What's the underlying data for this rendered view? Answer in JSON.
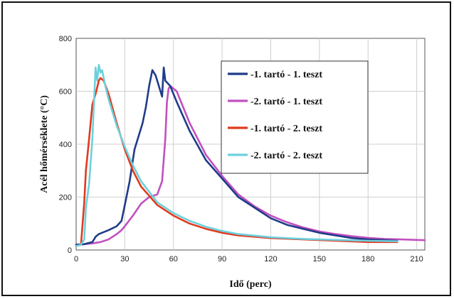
{
  "chart_data": {
    "type": "line",
    "xlabel": "Idő (perc)",
    "ylabel": "Acél hőmérséklete (°C)",
    "xlim": [
      0,
      215
    ],
    "ylim": [
      0,
      800
    ],
    "xticks": [
      0,
      30,
      60,
      90,
      120,
      150,
      180,
      210
    ],
    "yticks": [
      0,
      200,
      400,
      600,
      800
    ],
    "grid": true,
    "legend_position": "top-right",
    "series": [
      {
        "name": "-1. tartó - 1. teszt",
        "color": "#1f3c88",
        "points": [
          [
            0,
            20
          ],
          [
            5,
            22
          ],
          [
            10,
            30
          ],
          [
            12,
            50
          ],
          [
            14,
            60
          ],
          [
            20,
            75
          ],
          [
            25,
            90
          ],
          [
            28,
            110
          ],
          [
            30,
            170
          ],
          [
            33,
            260
          ],
          [
            36,
            380
          ],
          [
            38,
            420
          ],
          [
            41,
            480
          ],
          [
            43,
            540
          ],
          [
            45,
            620
          ],
          [
            47,
            680
          ],
          [
            49,
            660
          ],
          [
            52,
            600
          ],
          [
            53,
            580
          ],
          [
            54,
            690
          ],
          [
            55,
            640
          ],
          [
            58,
            620
          ],
          [
            62,
            560
          ],
          [
            70,
            450
          ],
          [
            80,
            340
          ],
          [
            90,
            270
          ],
          [
            100,
            200
          ],
          [
            110,
            160
          ],
          [
            120,
            120
          ],
          [
            130,
            95
          ],
          [
            140,
            80
          ],
          [
            150,
            65
          ],
          [
            160,
            55
          ],
          [
            170,
            45
          ],
          [
            180,
            40
          ],
          [
            190,
            37
          ],
          [
            198,
            35
          ]
        ]
      },
      {
        "name": "-2. tartó - 1. teszt",
        "color": "#c050c0",
        "points": [
          [
            0,
            20
          ],
          [
            5,
            22
          ],
          [
            10,
            25
          ],
          [
            15,
            30
          ],
          [
            20,
            40
          ],
          [
            25,
            60
          ],
          [
            28,
            75
          ],
          [
            30,
            90
          ],
          [
            35,
            130
          ],
          [
            40,
            175
          ],
          [
            45,
            200
          ],
          [
            50,
            210
          ],
          [
            53,
            260
          ],
          [
            55,
            420
          ],
          [
            56,
            560
          ],
          [
            57,
            610
          ],
          [
            58,
            620
          ],
          [
            62,
            600
          ],
          [
            70,
            480
          ],
          [
            80,
            360
          ],
          [
            90,
            280
          ],
          [
            100,
            210
          ],
          [
            110,
            165
          ],
          [
            120,
            130
          ],
          [
            130,
            105
          ],
          [
            140,
            85
          ],
          [
            150,
            70
          ],
          [
            160,
            60
          ],
          [
            170,
            52
          ],
          [
            180,
            46
          ],
          [
            190,
            42
          ],
          [
            200,
            40
          ],
          [
            210,
            38
          ],
          [
            215,
            37
          ]
        ]
      },
      {
        "name": "-1. tartó - 2. teszt",
        "color": "#e03a1e",
        "points": [
          [
            0,
            15
          ],
          [
            3,
            20
          ],
          [
            5,
            180
          ],
          [
            6,
            300
          ],
          [
            7,
            360
          ],
          [
            8,
            420
          ],
          [
            10,
            550
          ],
          [
            12,
            590
          ],
          [
            14,
            640
          ],
          [
            15,
            650
          ],
          [
            17,
            640
          ],
          [
            20,
            590
          ],
          [
            25,
            480
          ],
          [
            30,
            380
          ],
          [
            35,
            300
          ],
          [
            40,
            240
          ],
          [
            50,
            170
          ],
          [
            60,
            130
          ],
          [
            70,
            100
          ],
          [
            80,
            80
          ],
          [
            90,
            65
          ],
          [
            100,
            55
          ],
          [
            120,
            45
          ],
          [
            140,
            40
          ],
          [
            160,
            35
          ],
          [
            180,
            30
          ],
          [
            198,
            30
          ]
        ]
      },
      {
        "name": "-2. tartó - 2. teszt",
        "color": "#6dd0dc",
        "points": [
          [
            0,
            15
          ],
          [
            3,
            20
          ],
          [
            5,
            40
          ],
          [
            6,
            160
          ],
          [
            8,
            250
          ],
          [
            10,
            420
          ],
          [
            11,
            560
          ],
          [
            12,
            690
          ],
          [
            13,
            640
          ],
          [
            14,
            700
          ],
          [
            15,
            670
          ],
          [
            16,
            680
          ],
          [
            18,
            620
          ],
          [
            20,
            570
          ],
          [
            25,
            470
          ],
          [
            30,
            390
          ],
          [
            35,
            320
          ],
          [
            40,
            260
          ],
          [
            50,
            180
          ],
          [
            60,
            140
          ],
          [
            70,
            110
          ],
          [
            80,
            88
          ],
          [
            90,
            72
          ],
          [
            100,
            60
          ],
          [
            120,
            48
          ],
          [
            140,
            42
          ],
          [
            160,
            38
          ],
          [
            180,
            35
          ],
          [
            198,
            33
          ]
        ]
      }
    ]
  }
}
